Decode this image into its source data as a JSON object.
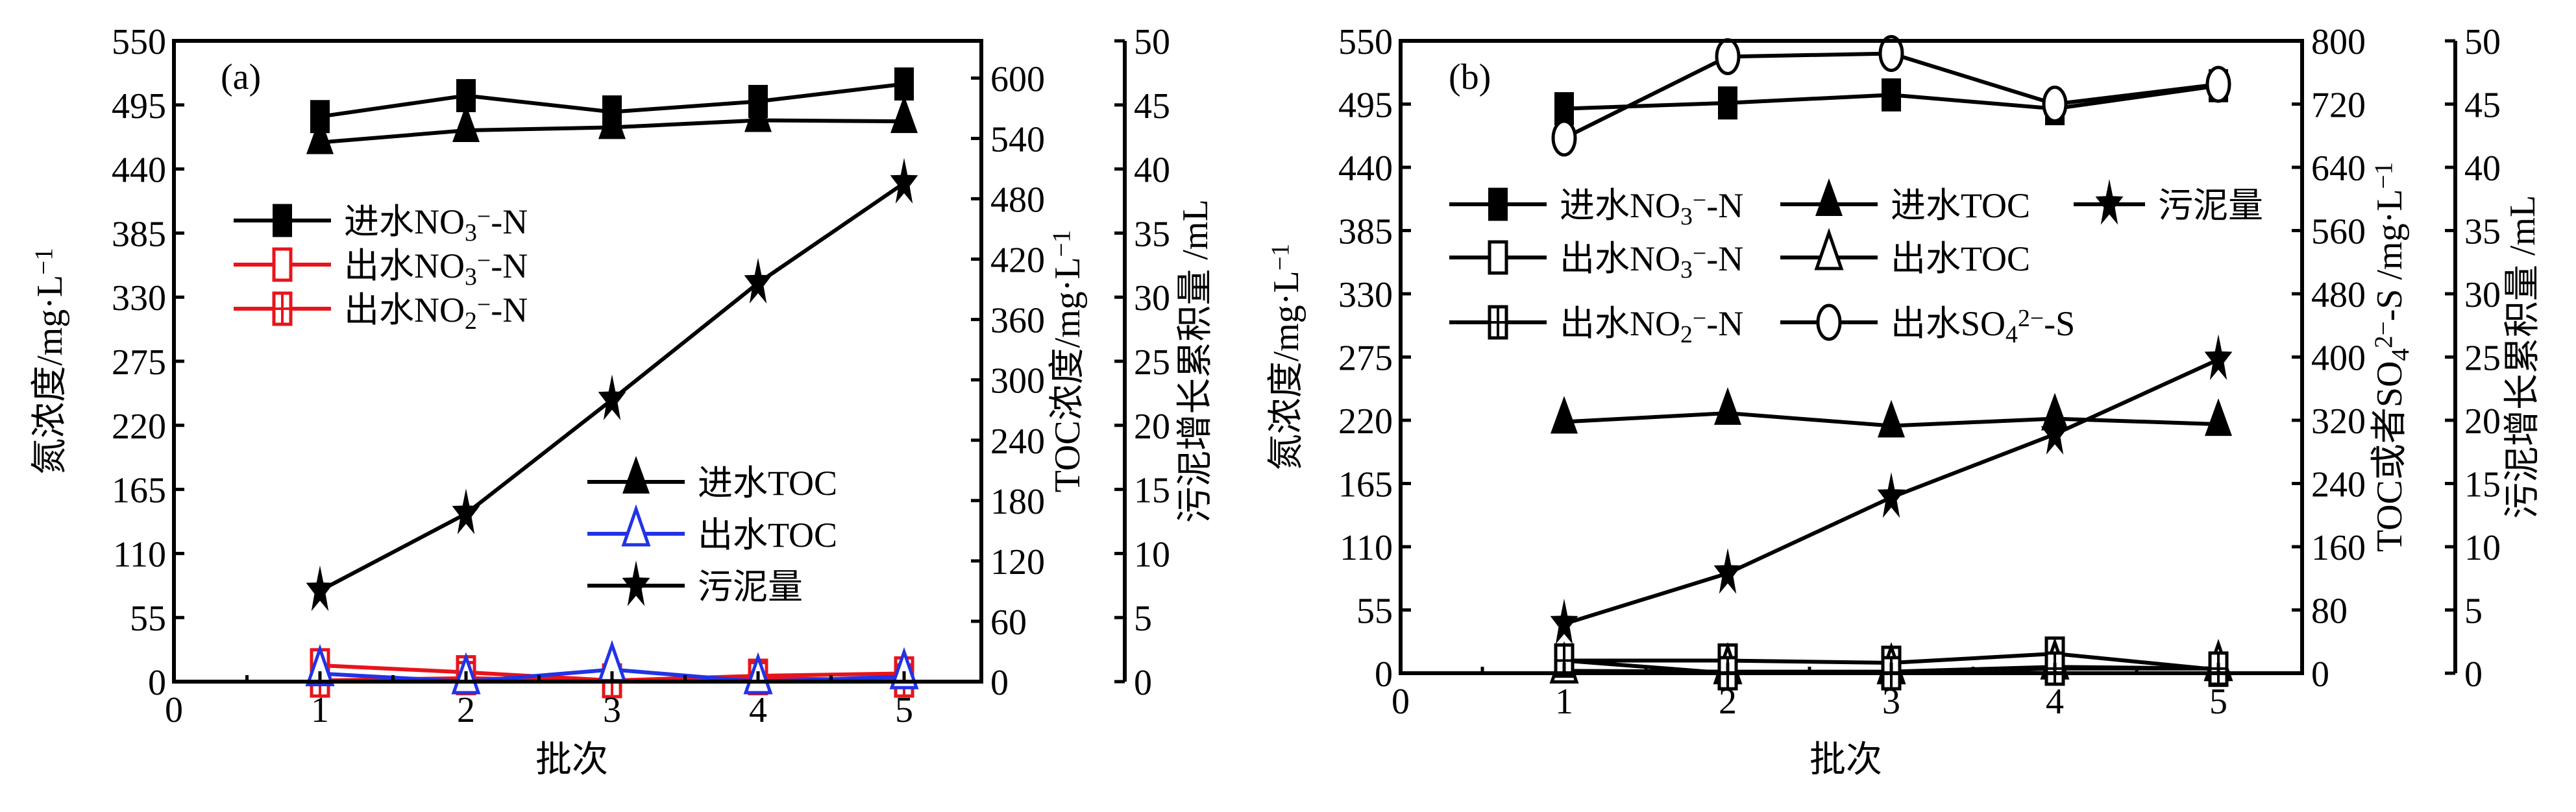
{
  "chart_data": [
    {
      "type": "line",
      "panel_label": "(a)",
      "xlabel": "批次",
      "x": [
        1,
        2,
        3,
        4,
        5
      ],
      "xlim": [
        0,
        5.5
      ],
      "xticks": [
        0,
        1,
        2,
        3,
        4,
        5
      ],
      "axes": {
        "left": {
          "label": "氮浓度/mg·L⁻¹",
          "ylim": [
            0,
            550
          ],
          "ticks": [
            0,
            55,
            110,
            165,
            220,
            275,
            330,
            385,
            440,
            495,
            550
          ]
        },
        "right1": {
          "label": "TOC浓度/mg·L⁻¹",
          "ylim": [
            0,
            637
          ],
          "ticks": [
            0,
            60,
            120,
            180,
            240,
            300,
            360,
            420,
            480,
            540,
            600
          ]
        },
        "right2": {
          "label": "污泥增长累积量 /mL",
          "ylim": [
            0,
            50
          ],
          "ticks": [
            0,
            5,
            10,
            15,
            20,
            25,
            30,
            35,
            40,
            45,
            50
          ]
        }
      },
      "series": [
        {
          "name": "进水NO₃⁻-N",
          "axis": "left",
          "marker": "square-filled",
          "color": "#000000",
          "values": [
            485,
            503,
            489,
            498,
            513
          ]
        },
        {
          "name": "出水NO₃⁻-N",
          "axis": "left",
          "marker": "square-open",
          "color": "#e8141b",
          "values": [
            14,
            8,
            1,
            5,
            7
          ]
        },
        {
          "name": "出水NO₂⁻-N",
          "axis": "left",
          "marker": "square-cross",
          "color": "#e8141b",
          "values": [
            1,
            3,
            0.5,
            3,
            1
          ]
        },
        {
          "name": "进水TOC",
          "axis": "right1",
          "marker": "triangle-filled",
          "color": "#000000",
          "values": [
            536,
            548,
            551,
            558,
            557
          ]
        },
        {
          "name": "出水TOC",
          "axis": "right1",
          "marker": "triangle-open",
          "color": "#2233e6",
          "values": [
            8,
            0,
            12,
            0,
            5
          ]
        },
        {
          "name": "污泥量",
          "axis": "right2",
          "marker": "star",
          "color": "#000000",
          "values": [
            7.1,
            13.1,
            22.0,
            31.1,
            38.9
          ]
        }
      ],
      "legend": [
        {
          "series": 0,
          "pos": "upper-left"
        },
        {
          "series": 1,
          "pos": "upper-left"
        },
        {
          "series": 2,
          "pos": "upper-left"
        },
        {
          "series": 3,
          "pos": "lower-right"
        },
        {
          "series": 4,
          "pos": "lower-right"
        },
        {
          "series": 5,
          "pos": "lower-right"
        }
      ]
    },
    {
      "type": "line",
      "panel_label": "(b)",
      "xlabel": "批次",
      "x": [
        1,
        2,
        3,
        4,
        5
      ],
      "xlim": [
        0,
        5.5
      ],
      "xticks": [
        0,
        1,
        2,
        3,
        4,
        5
      ],
      "axes": {
        "left": {
          "label": "氮浓度/mg·L⁻¹",
          "ylim": [
            0,
            550
          ],
          "ticks": [
            0,
            55,
            110,
            165,
            220,
            275,
            330,
            385,
            440,
            495,
            550
          ]
        },
        "right1": {
          "label": "TOC或者SO₄²⁻-S /mg·L⁻¹",
          "ylim": [
            0,
            800
          ],
          "ticks": [
            0,
            80,
            160,
            240,
            320,
            400,
            480,
            560,
            640,
            720,
            800
          ]
        },
        "right2": {
          "label": "污泥增长累积量 /mL",
          "ylim": [
            0,
            50
          ],
          "ticks": [
            0,
            5,
            10,
            15,
            20,
            25,
            30,
            35,
            40,
            45,
            50
          ]
        }
      },
      "series": [
        {
          "name": "进水NO₃⁻-N",
          "axis": "left",
          "marker": "square-filled",
          "color": "#000000",
          "values": [
            491,
            496,
            503,
            491,
            511
          ]
        },
        {
          "name": "进水TOC",
          "axis": "right1",
          "marker": "triangle-filled",
          "color": "#000000",
          "values": [
            318,
            329,
            313,
            322,
            315
          ]
        },
        {
          "name": "污泥量",
          "axis": "right2",
          "marker": "star",
          "color": "#000000",
          "values": [
            3.9,
            7.9,
            13.9,
            18.9,
            24.8
          ]
        },
        {
          "name": "出水NO₃⁻-N",
          "axis": "left",
          "marker": "square-open",
          "color": "#000000",
          "values": [
            11,
            11,
            9,
            17,
            3
          ]
        },
        {
          "name": "出水TOC",
          "axis": "right1",
          "marker": "triangle-open",
          "color": "#000000",
          "values": [
            3,
            2,
            2,
            8,
            6
          ]
        },
        {
          "name": "出水NO₂⁻-N",
          "axis": "left",
          "marker": "square-cross",
          "color": "#000000",
          "values": [
            11,
            0,
            0,
            4,
            4
          ]
        },
        {
          "name": "出水SO₄²⁻-S",
          "axis": "right1",
          "marker": "circle-open",
          "color": "#000000",
          "values": [
            677,
            780,
            784,
            720,
            745
          ]
        }
      ],
      "legend": [
        {
          "series": 0,
          "pos": "grid"
        },
        {
          "series": 1,
          "pos": "grid"
        },
        {
          "series": 2,
          "pos": "grid"
        },
        {
          "series": 3,
          "pos": "grid"
        },
        {
          "series": 4,
          "pos": "grid"
        },
        {
          "series": 5,
          "pos": "grid"
        },
        {
          "series": 6,
          "pos": "grid"
        }
      ]
    }
  ]
}
